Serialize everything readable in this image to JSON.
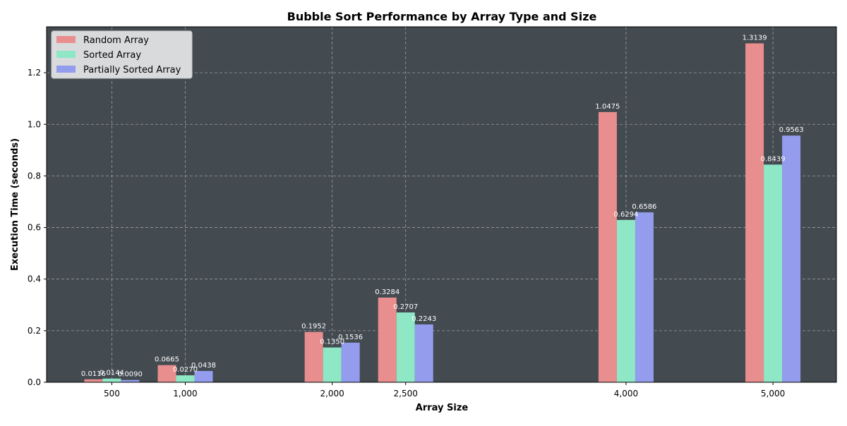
{
  "chart_data": {
    "type": "bar",
    "title": "Bubble Sort Performance by Array Type and Size",
    "xlabel": "Array Size",
    "ylabel": "Execution Time (seconds)",
    "x": [
      500,
      1000,
      2000,
      2500,
      4000,
      5000
    ],
    "tick_labels": [
      "500",
      "1,000",
      "2,000",
      "2,500",
      "4,000",
      "5,000"
    ],
    "y_ticks": [
      "0.0",
      "0.2",
      "0.4",
      "0.6",
      "0.8",
      "1.0",
      "1.2"
    ],
    "y_tick_values": [
      0.0,
      0.2,
      0.4,
      0.6,
      0.8,
      1.0,
      1.2
    ],
    "xlim": [
      56,
      5432
    ],
    "ylim": [
      0,
      1.378
    ],
    "grid": true,
    "legend_position": "top-left",
    "series": [
      {
        "name": "Random Array",
        "color": "#e88e8e",
        "values": [
          0.0116,
          0.0665,
          0.1952,
          0.3284,
          1.0475,
          1.3139
        ],
        "labels": [
          "0.0116",
          "0.0665",
          "0.1952",
          "0.3284",
          "1.0475",
          "1.3139"
        ]
      },
      {
        "name": "Sorted Array",
        "color": "#8ee8c6",
        "values": [
          0.0144,
          0.027,
          0.135,
          0.2707,
          0.6294,
          0.8439
        ],
        "labels": [
          "0.0144",
          "0.0270",
          "0.1350",
          "0.2707",
          "0.6294",
          "0.8439"
        ]
      },
      {
        "name": "Partially Sorted Array",
        "color": "#949ded",
        "values": [
          0.009,
          0.0438,
          0.1536,
          0.2243,
          0.6586,
          0.9563
        ],
        "labels": [
          "0.0090",
          "0.0438",
          "0.1536",
          "0.2243",
          "0.6586",
          "0.9563"
        ]
      }
    ],
    "colors": {
      "plot_background": "#434a50",
      "grid": "#9aa0a4",
      "value_label": "#ffffff",
      "legend_background": "#d9dadb"
    }
  }
}
